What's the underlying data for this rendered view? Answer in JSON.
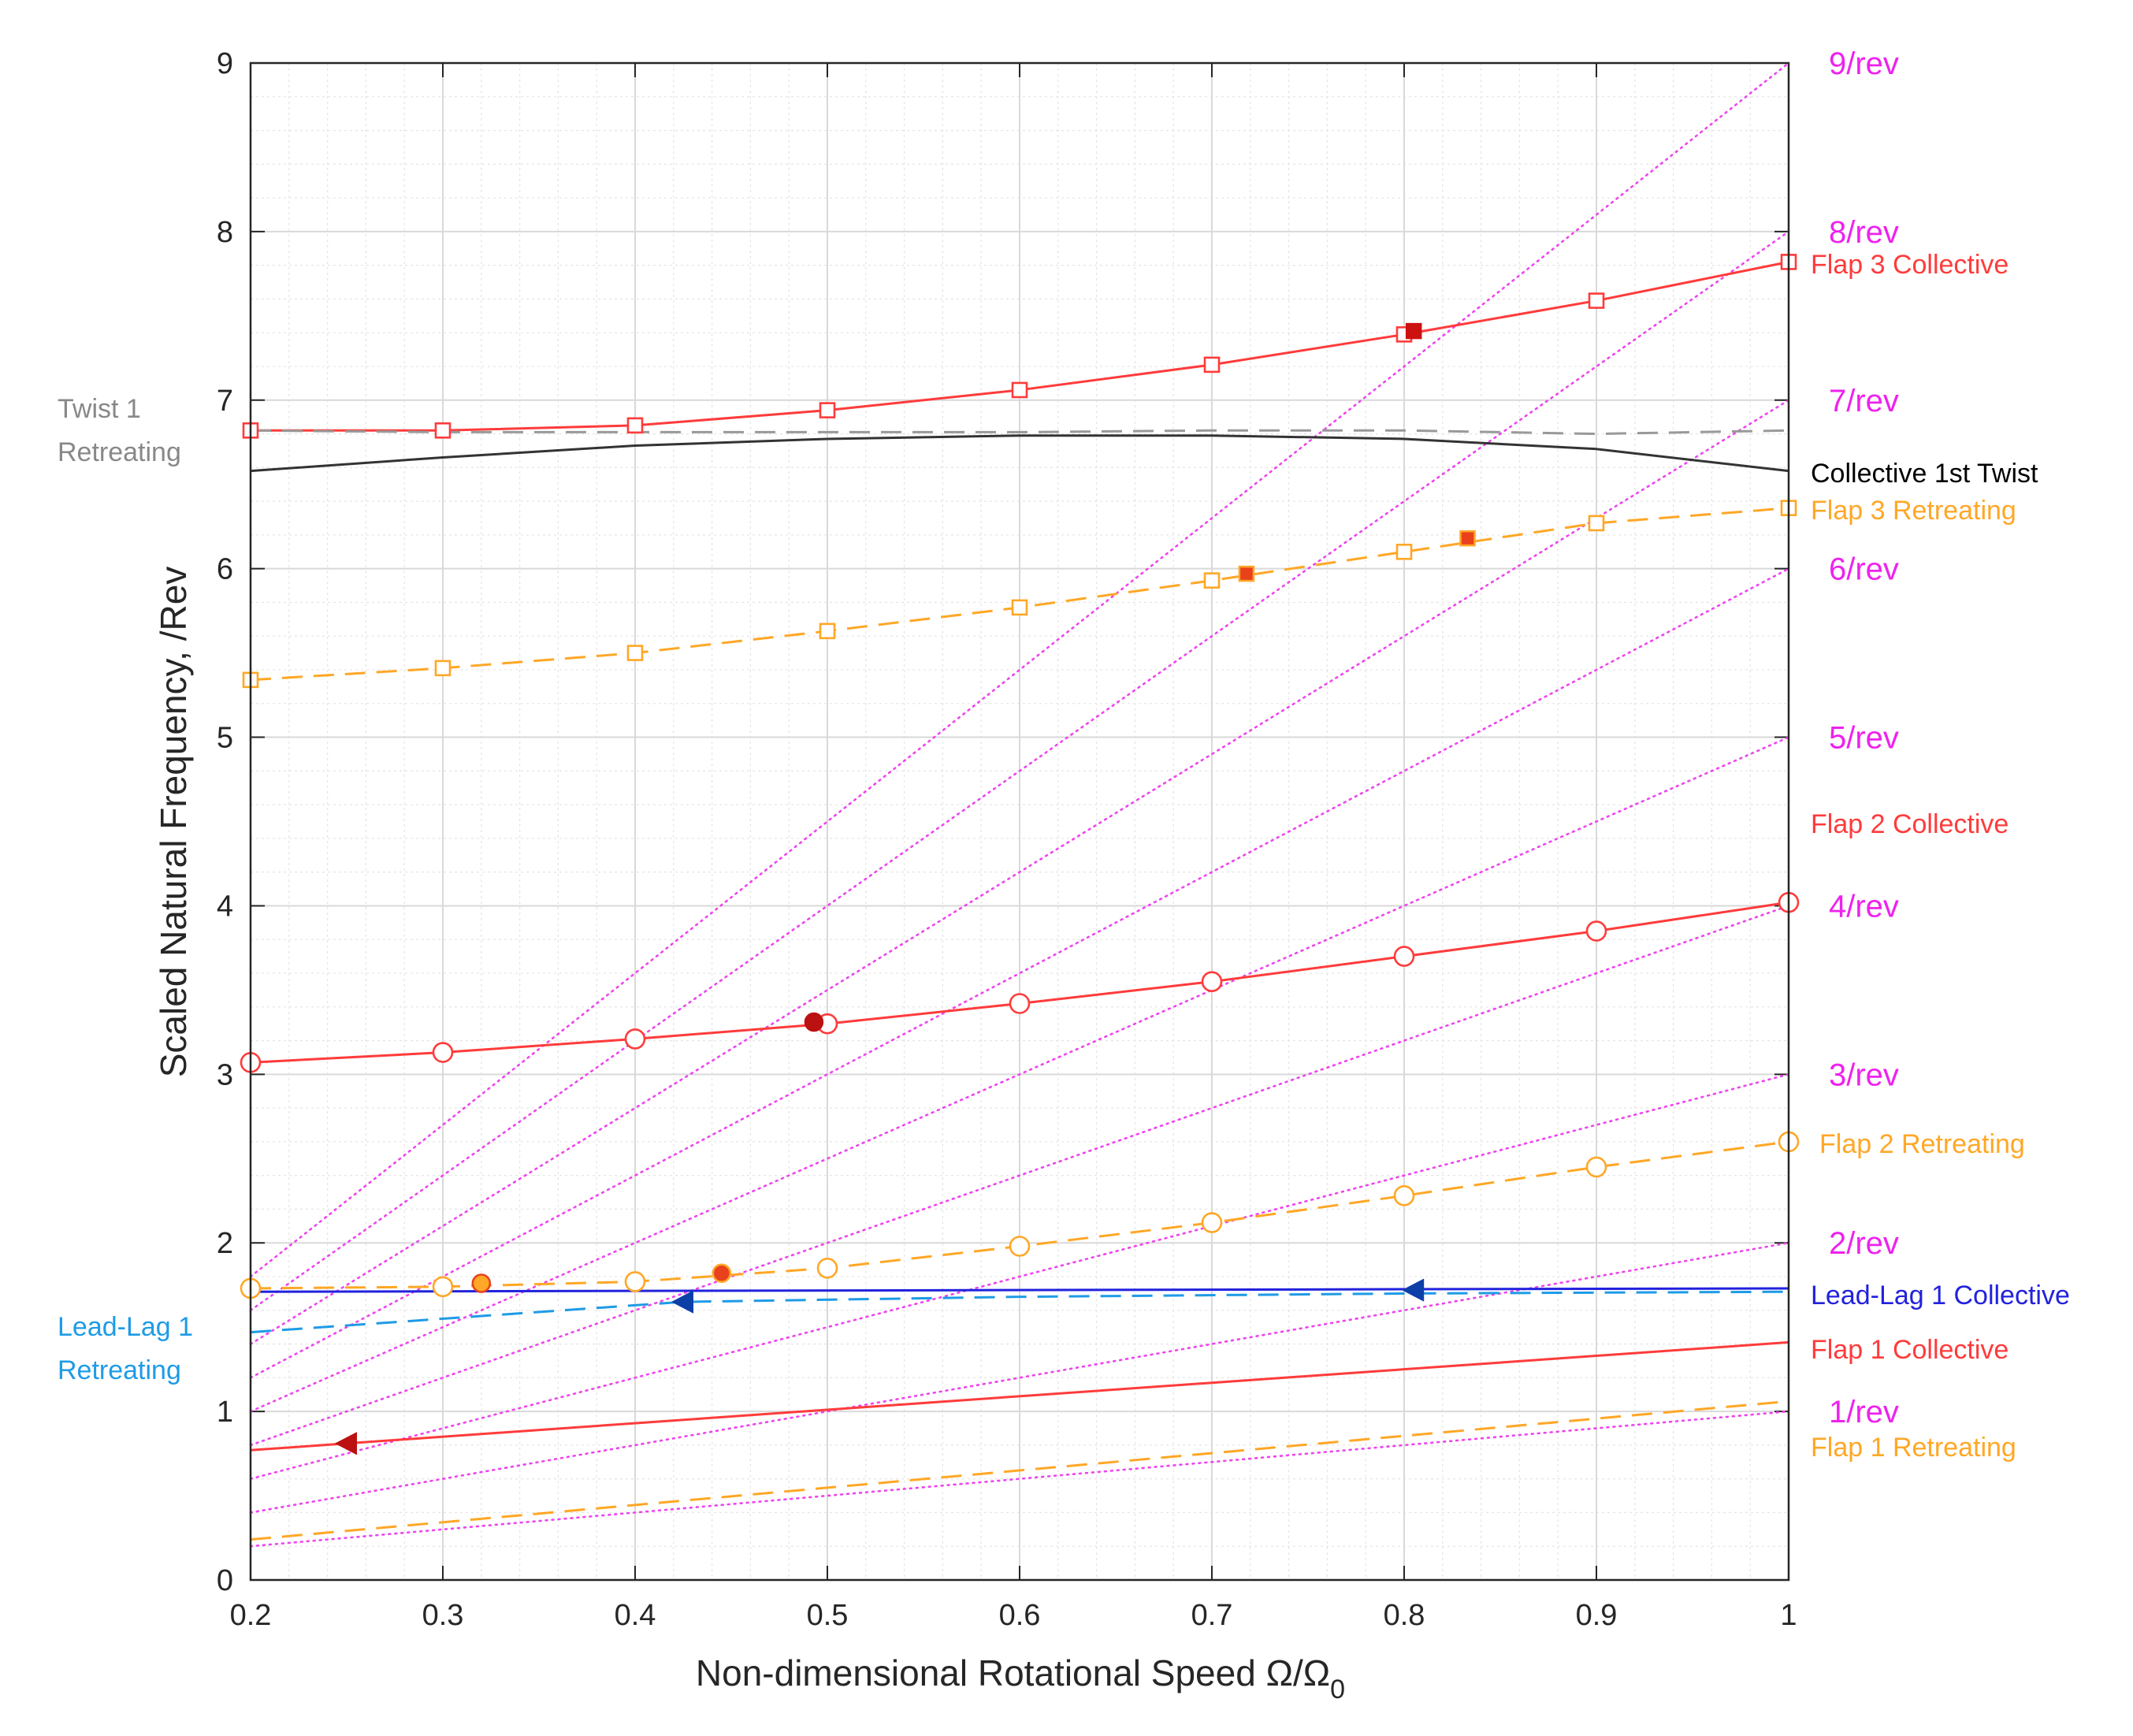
{
  "chart_data": {
    "type": "line",
    "title": "",
    "xlabel": "Non-dimensional Rotational Speed Ω/Ω",
    "xlabel_subscript": "0",
    "ylabel": "Scaled Natural Frequency, /Rev",
    "xlim": [
      0.2,
      1.0
    ],
    "ylim": [
      0,
      9
    ],
    "grid": true,
    "minor_grid": true,
    "xticks": [
      "0.2",
      "0.3",
      "0.4",
      "0.5",
      "0.6",
      "0.7",
      "0.8",
      "0.9",
      "1"
    ],
    "yticks": [
      "0",
      "1",
      "2",
      "3",
      "4",
      "5",
      "6",
      "7",
      "8",
      "9"
    ],
    "colors": {
      "collective": "#ff3b3b",
      "retreating": "#ffa726",
      "twist_collective": "#333333",
      "twist_retreating": "#999999",
      "leadlag_collective": "#2222dd",
      "leadlag_retreating": "#1e9be6",
      "rev_lines": "#ee44ee"
    },
    "rev_lines": {
      "values": [
        1,
        2,
        3,
        4,
        5,
        6,
        7,
        8,
        9
      ],
      "labels": [
        "1/rev",
        "2/rev",
        "3/rev",
        "4/rev",
        "5/rev",
        "6/rev",
        "7/rev",
        "8/rev",
        "9/rev"
      ]
    },
    "series": [
      {
        "name": "Flap 3 Collective",
        "color": "#ff3b3b",
        "dash": "solid",
        "marker": "square",
        "x": [
          0.2,
          0.3,
          0.4,
          0.5,
          0.6,
          0.7,
          0.8,
          0.9,
          1.0
        ],
        "y": [
          6.82,
          6.82,
          6.85,
          6.94,
          7.06,
          7.21,
          7.39,
          7.59,
          7.82
        ]
      },
      {
        "name": "Collective 1st Twist",
        "color": "#333333",
        "dash": "solid",
        "marker": "none",
        "x": [
          0.2,
          0.3,
          0.4,
          0.5,
          0.6,
          0.7,
          0.8,
          0.9,
          1.0
        ],
        "y": [
          6.58,
          6.66,
          6.73,
          6.77,
          6.79,
          6.79,
          6.77,
          6.71,
          6.58
        ]
      },
      {
        "name": "Twist 1 Retreating",
        "color": "#999999",
        "dash": "dashed",
        "marker": "none",
        "x": [
          0.2,
          0.3,
          0.4,
          0.5,
          0.6,
          0.7,
          0.8,
          0.9,
          1.0
        ],
        "y": [
          6.82,
          6.81,
          6.81,
          6.81,
          6.81,
          6.82,
          6.82,
          6.8,
          6.82
        ]
      },
      {
        "name": "Flap 3 Retreating",
        "color": "#ffa726",
        "dash": "dashed",
        "marker": "square",
        "x": [
          0.2,
          0.3,
          0.4,
          0.5,
          0.6,
          0.7,
          0.8,
          0.9,
          1.0
        ],
        "y": [
          5.34,
          5.41,
          5.5,
          5.63,
          5.77,
          5.93,
          6.1,
          6.27,
          6.36
        ]
      },
      {
        "name": "Flap 2 Collective",
        "color": "#ff3b3b",
        "dash": "solid",
        "marker": "circle",
        "x": [
          0.2,
          0.3,
          0.4,
          0.5,
          0.6,
          0.7,
          0.8,
          0.9,
          1.0
        ],
        "y": [
          3.07,
          3.13,
          3.21,
          3.3,
          3.42,
          3.55,
          3.7,
          3.85,
          4.02
        ]
      },
      {
        "name": "Flap 2 Retreating",
        "color": "#ffa726",
        "dash": "dashed",
        "marker": "circle",
        "x": [
          0.2,
          0.3,
          0.4,
          0.5,
          0.6,
          0.7,
          0.8,
          0.9,
          1.0
        ],
        "y": [
          1.73,
          1.74,
          1.77,
          1.85,
          1.98,
          2.12,
          2.28,
          2.45,
          2.6
        ]
      },
      {
        "name": "Lead-Lag 1 Collective",
        "color": "#2222dd",
        "dash": "solid",
        "marker": "none",
        "x": [
          0.2,
          1.0
        ],
        "y": [
          1.71,
          1.73
        ]
      },
      {
        "name": "Lead-Lag 1 Retreating",
        "color": "#1e9be6",
        "dash": "dashed",
        "marker": "none",
        "x": [
          0.2,
          0.425,
          0.6,
          0.805,
          1.0
        ],
        "y": [
          1.47,
          1.65,
          1.68,
          1.7,
          1.71
        ]
      },
      {
        "name": "Flap 1 Collective",
        "color": "#ff3b3b",
        "dash": "solid",
        "marker": "none",
        "x": [
          0.2,
          1.0
        ],
        "y": [
          0.77,
          1.41
        ]
      },
      {
        "name": "Flap 1 Retreating",
        "color": "#ffa726",
        "dash": "dashed",
        "marker": "none",
        "x": [
          0.2,
          1.0
        ],
        "y": [
          0.24,
          1.06
        ]
      }
    ],
    "crossings": [
      {
        "x": 0.805,
        "y": 7.41,
        "shape": "square",
        "fill": "#cc1111",
        "stroke": "#cc1111"
      },
      {
        "x": 0.718,
        "y": 5.97,
        "shape": "square",
        "fill": "#e8411b",
        "stroke": "#ffa726"
      },
      {
        "x": 0.833,
        "y": 6.18,
        "shape": "square",
        "fill": "#e8411b",
        "stroke": "#ffa726"
      },
      {
        "x": 0.493,
        "y": 3.31,
        "shape": "circle",
        "fill": "#bb1111",
        "stroke": "#bb1111"
      },
      {
        "x": 0.32,
        "y": 1.76,
        "shape": "circle",
        "fill": "#ffa726",
        "stroke": "#e8411b"
      },
      {
        "x": 0.445,
        "y": 1.82,
        "shape": "circle",
        "fill": "#e8411b",
        "stroke": "#ffa726"
      },
      {
        "x": 0.425,
        "y": 1.65,
        "shape": "triangle",
        "fill": "#0d3fa8",
        "stroke": "#0d3fa8"
      },
      {
        "x": 0.805,
        "y": 1.72,
        "shape": "triangle",
        "fill": "#0d3fa8",
        "stroke": "#0d3fa8"
      },
      {
        "x": 0.25,
        "y": 0.81,
        "shape": "triangle",
        "fill": "#bb1111",
        "stroke": "#bb1111"
      }
    ],
    "labels": {
      "flap3_collective": "Flap 3 Collective",
      "collective_twist": "Collective 1st Twist",
      "flap3_retreating": "Flap 3 Retreating",
      "flap2_collective": "Flap 2 Collective",
      "flap2_retreating": "Flap 2 Retreating",
      "leadlag_collective": "Lead-Lag 1 Collective",
      "flap1_collective": "Flap 1 Collective",
      "flap1_retreating": "Flap 1 Retreating",
      "twist_retreating_1": "Twist 1",
      "twist_retreating_2": "Retreating",
      "leadlag_retreating_1": "Lead-Lag 1",
      "leadlag_retreating_2": "Retreating"
    }
  }
}
